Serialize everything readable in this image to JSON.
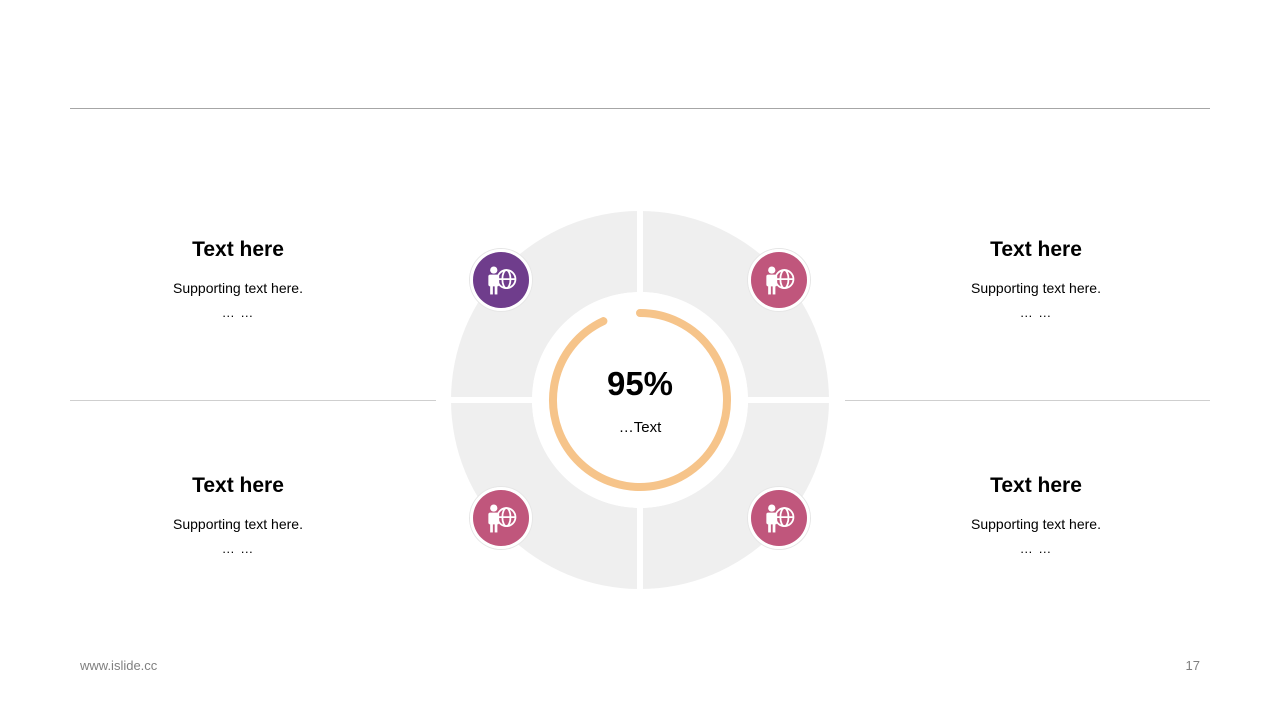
{
  "blocks": [
    {
      "title": "Text here",
      "supporting": "Supporting  text here.",
      "dots": "… …"
    },
    {
      "title": "Text here",
      "supporting": "Supporting  text here.",
      "dots": "… …"
    },
    {
      "title": "Text here",
      "supporting": "Supporting  text here.",
      "dots": "… …"
    },
    {
      "title": "Text here",
      "supporting": "Supporting  text here.",
      "dots": "… …"
    }
  ],
  "center": {
    "value": "95%",
    "label": "…Text",
    "progress_fraction": 0.95
  },
  "icons": [
    {
      "name": "person-globe-icon",
      "color": "#6f3d8c"
    },
    {
      "name": "person-globe-icon",
      "color": "#c0567c"
    },
    {
      "name": "person-globe-icon",
      "color": "#c0567c"
    },
    {
      "name": "person-globe-icon",
      "color": "#c0567c"
    }
  ],
  "colors": {
    "ring_background": "#efefef",
    "progress": "#f6c48a",
    "rule": "#a6a6a6"
  },
  "footer": {
    "website": "www.islide.cc",
    "page_number": "17"
  }
}
